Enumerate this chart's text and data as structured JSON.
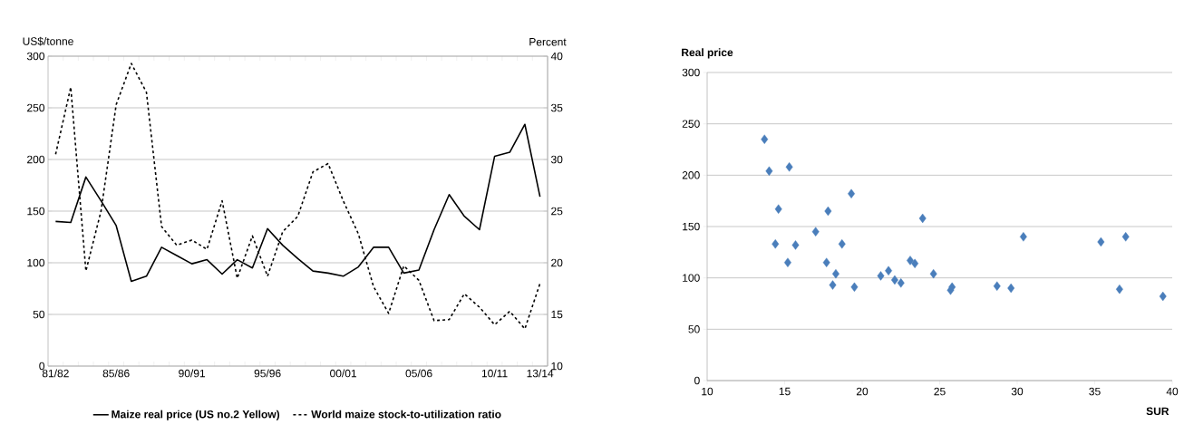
{
  "chart_data": [
    {
      "type": "line",
      "categories": [
        "81/82",
        null,
        null,
        null,
        "85/86",
        null,
        null,
        null,
        null,
        "90/91",
        null,
        null,
        null,
        null,
        "95/96",
        null,
        null,
        null,
        null,
        "00/01",
        null,
        null,
        null,
        null,
        "05/06",
        null,
        null,
        null,
        null,
        "10/11",
        null,
        null,
        "13/14"
      ],
      "ylabel": "US$/tonne",
      "y2label": "Percent",
      "ylim": [
        0,
        300
      ],
      "yticks": [
        0,
        50,
        100,
        150,
        200,
        250,
        300
      ],
      "y2lim": [
        10,
        40
      ],
      "y2ticks": [
        10,
        15,
        20,
        25,
        30,
        35,
        40
      ],
      "grid": "y",
      "legend": "bottom",
      "series": [
        {
          "name": "Maize real price (US no.2 Yellow)",
          "color": "#000000",
          "line_style": "solid",
          "values": [
            140,
            139,
            183,
            160,
            136,
            82,
            87,
            115,
            107,
            99,
            103,
            89,
            103,
            95,
            133,
            117,
            104,
            92,
            90,
            87,
            96,
            115,
            115,
            90,
            93,
            132,
            166,
            145,
            132,
            203,
            207,
            234,
            164
          ]
        },
        {
          "name": "World maize stock-to-utilization ratio",
          "color": "#000000",
          "line_style": "dashed",
          "axis": "y2",
          "values": [
            30.5,
            37,
            19.2,
            25,
            35.3,
            39.3,
            36.5,
            23.5,
            21.7,
            22.2,
            21.3,
            26,
            18.5,
            22.6,
            18.7,
            23,
            24.5,
            28.8,
            29.6,
            26,
            22.8,
            17.7,
            15.1,
            19.7,
            18.3,
            14.4,
            14.5,
            17,
            15.7,
            14,
            15.3,
            13.6,
            18
          ]
        }
      ]
    },
    {
      "type": "scatter",
      "ylabel": "Real price",
      "xlabel": "SUR",
      "color": "#4a7ebb",
      "marker": "diamond",
      "xlim": [
        10,
        40
      ],
      "xticks": [
        10,
        15,
        20,
        25,
        30,
        35,
        40
      ],
      "ylim": [
        0,
        300
      ],
      "yticks": [
        0,
        50,
        100,
        150,
        200,
        250,
        300
      ],
      "grid": "y",
      "x": [
        13.7,
        14.0,
        15.3,
        14.6,
        14.4,
        15.7,
        15.2,
        17.0,
        17.8,
        19.3,
        17.7,
        18.3,
        18.1,
        18.7,
        19.5,
        21.2,
        21.7,
        22.1,
        22.5,
        23.1,
        23.4,
        23.9,
        24.6,
        25.7,
        25.8,
        28.7,
        29.6,
        30.4,
        35.4,
        37.0,
        36.6,
        39.4
      ],
      "values": [
        235,
        204,
        208,
        167,
        133,
        132,
        115,
        145,
        165,
        182,
        115,
        104,
        93,
        133,
        91,
        102,
        107,
        98,
        95,
        117,
        114,
        158,
        104,
        88,
        91,
        92,
        90,
        140,
        135,
        140,
        89,
        82
      ]
    }
  ]
}
